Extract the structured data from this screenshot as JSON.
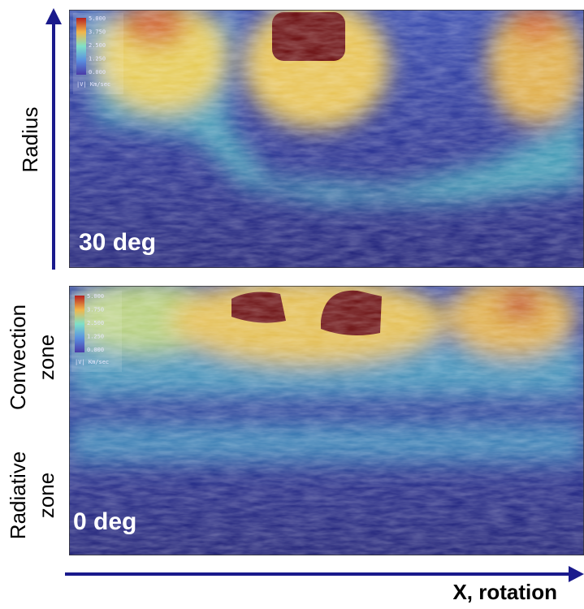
{
  "axes": {
    "y_label": "Radius",
    "x_label": "X, rotation"
  },
  "zones": [
    {
      "line1": "Convection",
      "line2": "zone"
    },
    {
      "line1": "Radiative",
      "line2": "zone"
    }
  ],
  "panels": [
    {
      "label": "30 deg",
      "colorbar": {
        "ticks": [
          "5.000",
          "3.750",
          "2.500",
          "1.250",
          "0.000"
        ],
        "unit": "|V| Km/sec"
      }
    },
    {
      "label": "0 deg",
      "colorbar": {
        "ticks": [
          "5.000",
          "3.750",
          "2.500",
          "1.250",
          "0.000"
        ],
        "unit": "|V| Km/sec"
      }
    }
  ]
}
